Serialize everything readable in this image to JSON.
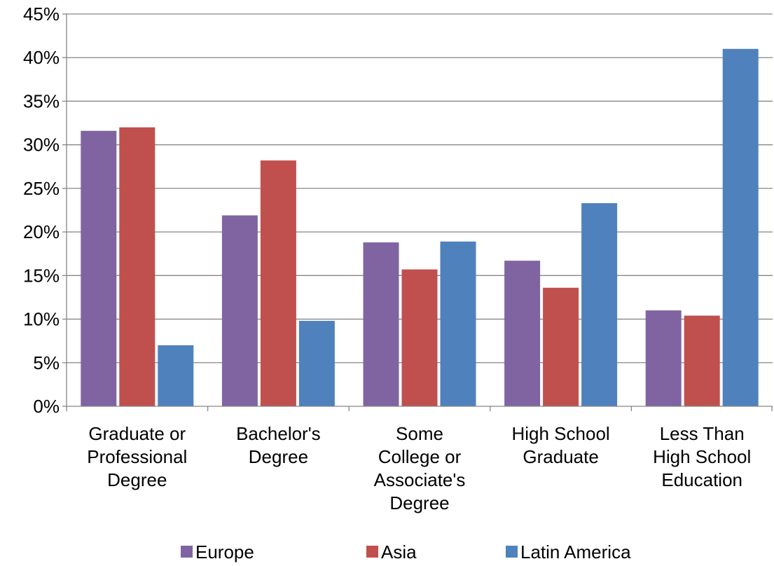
{
  "chart_data": {
    "type": "bar",
    "categories": [
      [
        "Graduate or",
        "Professional",
        "Degree"
      ],
      [
        "Bachelor's",
        "Degree"
      ],
      [
        "Some",
        "College or",
        "Associate's",
        "Degree"
      ],
      [
        "High School",
        "Graduate"
      ],
      [
        "Less Than",
        "High School",
        "Education"
      ]
    ],
    "series": [
      {
        "name": "Europe",
        "color": "#8064a2",
        "values": [
          31.6,
          21.9,
          18.8,
          16.7,
          11.0
        ]
      },
      {
        "name": "Asia",
        "color": "#c0504d",
        "values": [
          32.0,
          28.2,
          15.7,
          13.6,
          10.4
        ]
      },
      {
        "name": "Latin America",
        "color": "#4f81bd",
        "values": [
          7.0,
          9.8,
          18.9,
          23.3,
          41.0
        ]
      }
    ],
    "ylim": [
      0,
      45
    ],
    "yticks": [
      0,
      5,
      10,
      15,
      20,
      25,
      30,
      35,
      40,
      45
    ],
    "ytick_labels": [
      "0%",
      "5%",
      "10%",
      "15%",
      "20%",
      "25%",
      "30%",
      "35%",
      "40%",
      "45%"
    ],
    "grid": true,
    "legend": "bottom",
    "title": "",
    "xlabel": "",
    "ylabel": ""
  }
}
